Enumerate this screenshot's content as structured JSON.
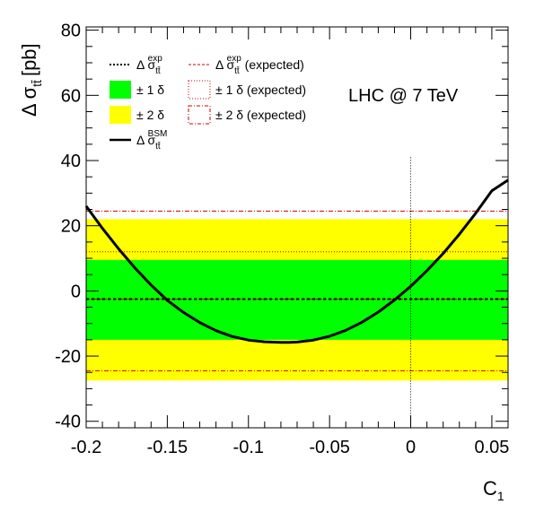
{
  "chart_data": {
    "type": "line",
    "title": "",
    "annotation": "LHC @ 7 TeV",
    "xlabel": "C",
    "xlabel_sub": "1",
    "ylabel": "Δ σ",
    "ylabel_sub": "tt̄",
    "ylabel_unit": "[pb]",
    "xlim": [
      -0.2,
      0.06
    ],
    "ylim": [
      -42,
      81
    ],
    "x_ticks": [
      -0.2,
      -0.15,
      -0.1,
      -0.05,
      0,
      0.05
    ],
    "x_tick_labels": [
      "-0.2",
      "-0.15",
      "-0.1",
      "-0.05",
      "0",
      "0.05"
    ],
    "y_ticks": [
      -40,
      -20,
      0,
      20,
      40,
      60,
      80
    ],
    "y_tick_labels": [
      "-40",
      "-20",
      "0",
      "20",
      "40",
      "60",
      "80"
    ],
    "bands": {
      "one_sigma": {
        "low": -15,
        "high": 9.5,
        "color": "#00ff00"
      },
      "two_sigma": {
        "low": -27.5,
        "high": 22,
        "color": "#ffff00"
      }
    },
    "measured_exp": -2.5,
    "expected_exp": -2.5,
    "expected_one_sigma": [
      -2.5,
      12
    ],
    "expected_two_sigma": [
      -24.5,
      24.5
    ],
    "zero_line_x": 0,
    "series": [
      {
        "name": "Δ σ tt̄ BSM",
        "x": [
          -0.2,
          -0.19,
          -0.18,
          -0.17,
          -0.16,
          -0.15,
          -0.14,
          -0.13,
          -0.12,
          -0.11,
          -0.1,
          -0.09,
          -0.08,
          -0.075,
          -0.07,
          -0.06,
          -0.05,
          -0.04,
          -0.03,
          -0.02,
          -0.01,
          0,
          0.01,
          0.02,
          0.03,
          0.04,
          0.05,
          0.06
        ],
        "y": [
          26,
          19.2,
          12.9,
          7.1,
          1.8,
          -2.9,
          -6.6,
          -9.7,
          -12.2,
          -14,
          -15.1,
          -15.6,
          -15.8,
          -15.8,
          -15.7,
          -15.1,
          -13.9,
          -12.1,
          -9.6,
          -6.5,
          -2.8,
          1.4,
          6.2,
          11.5,
          17.4,
          23.8,
          30.7,
          34
        ]
      }
    ]
  },
  "legend": {
    "items": [
      {
        "label": "Δ σ",
        "sub": "tt̄",
        "sup": "exp"
      },
      {
        "label": "± 1 δ"
      },
      {
        "label": "± 2 δ"
      },
      {
        "label": "Δ σ",
        "sub": "tt̄",
        "sup": "BSM"
      },
      {
        "label": "Δ σ",
        "sub": "tt̄",
        "sup": "exp",
        "suffix": " (expected)"
      },
      {
        "label": "± 1 δ (expected)"
      },
      {
        "label": "± 2 δ (expected)"
      }
    ]
  },
  "colors": {
    "one_sigma": "#00ff00",
    "two_sigma": "#ffff00",
    "expected": "#cc0000",
    "curve": "#000000"
  }
}
